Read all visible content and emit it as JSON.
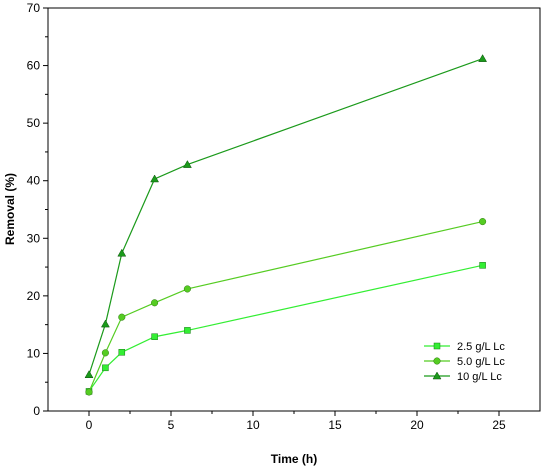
{
  "chart_data": {
    "type": "line",
    "title": "",
    "xlabel": "Time (h)",
    "ylabel": "Removal (%)",
    "xlim": [
      -2.5,
      27.5
    ],
    "ylim": [
      0,
      70
    ],
    "x_ticks": [
      0,
      5,
      10,
      15,
      20,
      25
    ],
    "y_ticks": [
      0,
      10,
      20,
      30,
      40,
      50,
      60,
      70
    ],
    "grid": false,
    "legend_position": "bottom-right",
    "series": [
      {
        "name": "2.5 g/L Lc",
        "marker": "square",
        "color": "#33ee33",
        "x": [
          0,
          1,
          2,
          4,
          6,
          24
        ],
        "y": [
          3.4,
          7.5,
          10.2,
          12.9,
          14.0,
          25.3
        ]
      },
      {
        "name": "5.0 g/L Lc",
        "marker": "circle",
        "color": "#55cc22",
        "x": [
          0,
          1,
          2,
          4,
          6,
          24
        ],
        "y": [
          3.3,
          10.1,
          16.3,
          18.8,
          21.2,
          32.9
        ]
      },
      {
        "name": "10 g/L Lc",
        "marker": "triangle",
        "color": "#1b9a1b",
        "x": [
          0,
          1,
          2,
          4,
          6,
          24
        ],
        "y": [
          6.3,
          15.1,
          27.4,
          40.3,
          42.8,
          61.2
        ]
      }
    ]
  }
}
